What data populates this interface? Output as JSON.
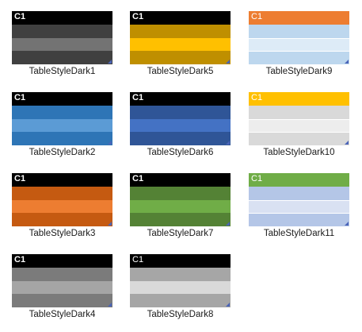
{
  "gallery": {
    "items": [
      {
        "name": "TableStyleDark1",
        "header_text": "C1",
        "header_bg": "#000000",
        "header_fg": "#ffffff",
        "header_bold": true,
        "band_a": "#404040",
        "band_b": "#737373",
        "divider": ""
      },
      {
        "name": "TableStyleDark5",
        "header_text": "C1",
        "header_bg": "#000000",
        "header_fg": "#ffffff",
        "header_bold": true,
        "band_a": "#bf8f00",
        "band_b": "#ffc000",
        "divider": ""
      },
      {
        "name": "TableStyleDark9",
        "header_text": "C1",
        "header_bg": "#ed7d31",
        "header_fg": "#ffffff",
        "header_bold": false,
        "band_a": "#bdd7ee",
        "band_b": "#ddebf7",
        "divider": "#ffffff"
      },
      {
        "name": "TableStyleDark2",
        "header_text": "C1",
        "header_bg": "#000000",
        "header_fg": "#ffffff",
        "header_bold": true,
        "band_a": "#2e75b6",
        "band_b": "#5b9bd5",
        "divider": ""
      },
      {
        "name": "TableStyleDark6",
        "header_text": "C1",
        "header_bg": "#000000",
        "header_fg": "#ffffff",
        "header_bold": true,
        "band_a": "#2f5597",
        "band_b": "#4472c4",
        "divider": ""
      },
      {
        "name": "TableStyleDark10",
        "header_text": "C1",
        "header_bg": "#ffc000",
        "header_fg": "#ffffff",
        "header_bold": false,
        "band_a": "#d9d9d9",
        "band_b": "#ededed",
        "divider": "#ffffff"
      },
      {
        "name": "TableStyleDark3",
        "header_text": "C1",
        "header_bg": "#000000",
        "header_fg": "#ffffff",
        "header_bold": true,
        "band_a": "#c55a11",
        "band_b": "#ed7d31",
        "divider": ""
      },
      {
        "name": "TableStyleDark7",
        "header_text": "C1",
        "header_bg": "#000000",
        "header_fg": "#ffffff",
        "header_bold": true,
        "band_a": "#548235",
        "band_b": "#70ad47",
        "divider": ""
      },
      {
        "name": "TableStyleDark11",
        "header_text": "C1",
        "header_bg": "#70ad47",
        "header_fg": "#ffffff",
        "header_bold": false,
        "band_a": "#b4c6e7",
        "band_b": "#d9e1f2",
        "divider": "#ffffff"
      },
      {
        "name": "TableStyleDark4",
        "header_text": "C1",
        "header_bg": "#000000",
        "header_fg": "#ffffff",
        "header_bold": true,
        "band_a": "#7b7b7b",
        "band_b": "#a5a5a5",
        "divider": ""
      },
      {
        "name": "TableStyleDark8",
        "header_text": "C1",
        "header_bg": "#000000",
        "header_fg": "#ffffff",
        "header_bold": false,
        "band_a": "#a6a6a6",
        "band_b": "#d9d9d9",
        "divider": ""
      }
    ]
  },
  "icons": {
    "resize_handle": "resize-grip-icon"
  }
}
